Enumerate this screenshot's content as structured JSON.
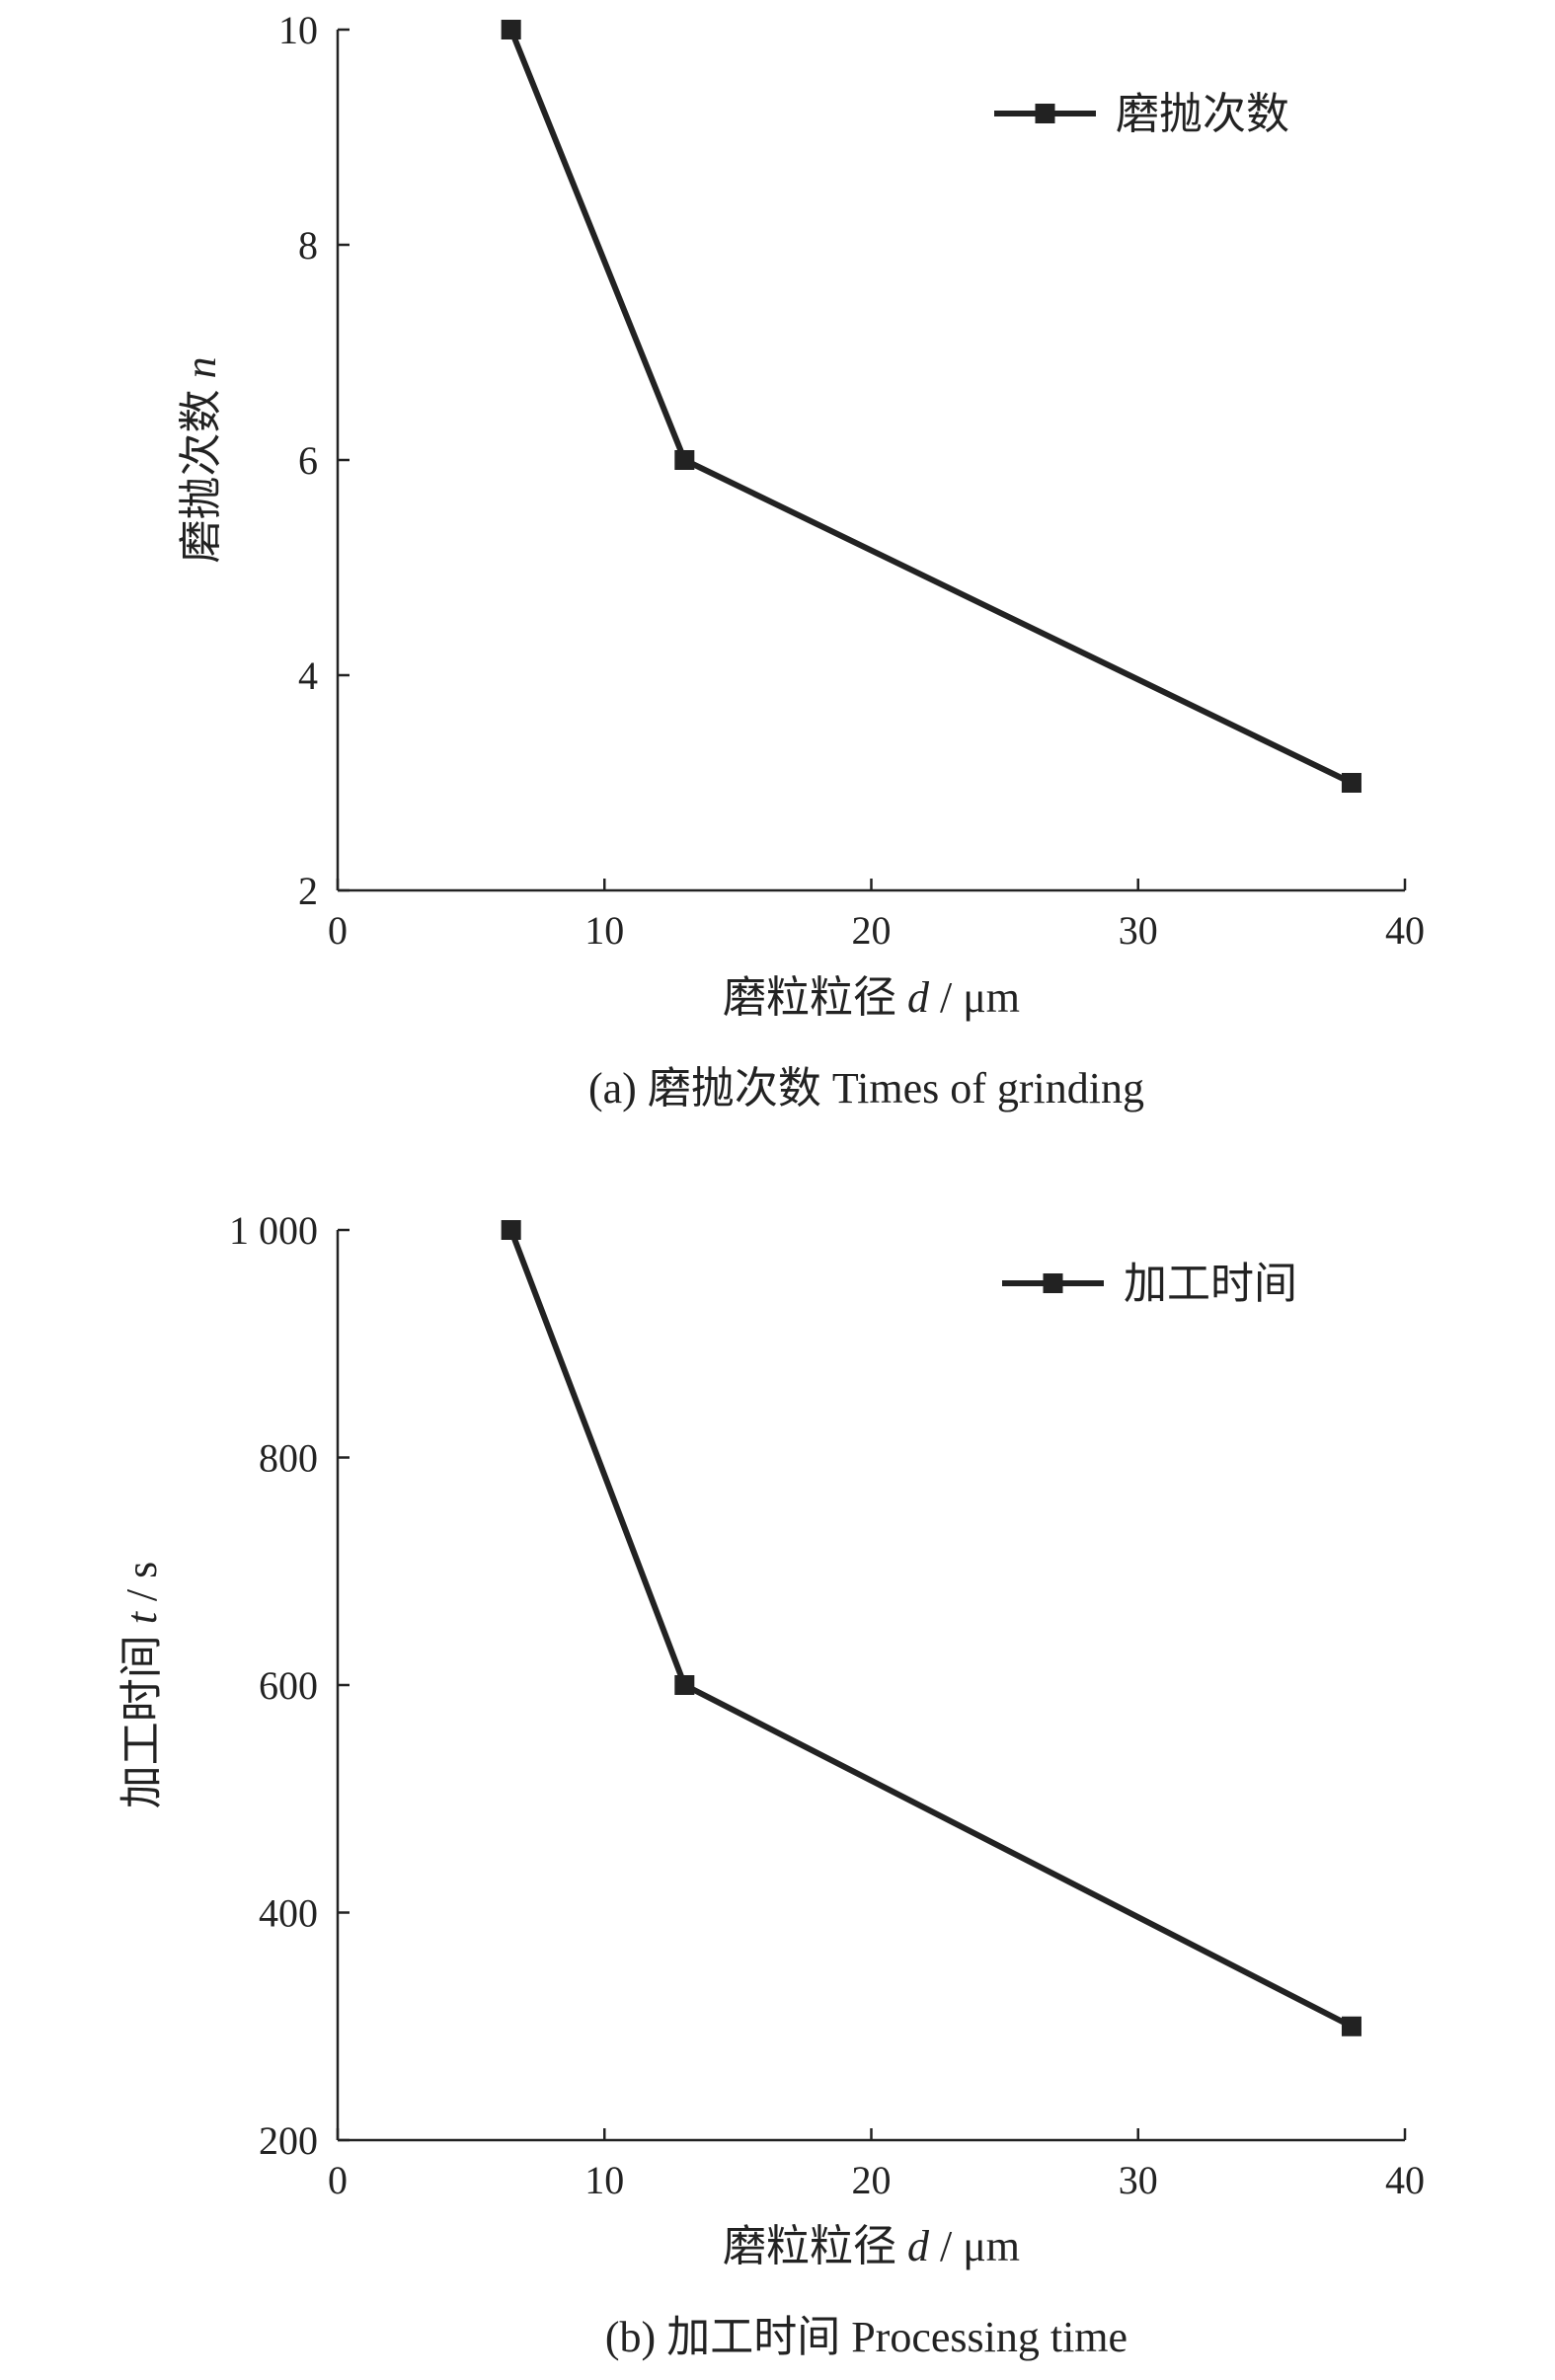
{
  "chart_data": [
    {
      "type": "line",
      "caption": "(a) 磨抛次数 Times of grinding",
      "xlabel_main": "磨粒粒径 ",
      "xlabel_var": "d",
      "xlabel_unit": " / μm",
      "ylabel_main": "磨抛次数 ",
      "ylabel_var": "n",
      "ylabel_unit": "",
      "xlim": [
        0,
        40
      ],
      "ylim": [
        2,
        10
      ],
      "xticks": [
        0,
        10,
        20,
        30,
        40
      ],
      "yticks": [
        2,
        4,
        6,
        8,
        10
      ],
      "xtick_labels": [
        "0",
        "10",
        "20",
        "30",
        "40"
      ],
      "ytick_labels": [
        "2",
        "4",
        "6",
        "8",
        "10"
      ],
      "grid": false,
      "legend_position": "top-right",
      "series": [
        {
          "name": "磨抛次数",
          "x": [
            6.5,
            13,
            38
          ],
          "y": [
            10,
            6,
            3
          ]
        }
      ]
    },
    {
      "type": "line",
      "caption": "(b) 加工时间 Processing time",
      "xlabel_main": "磨粒粒径 ",
      "xlabel_var": "d",
      "xlabel_unit": " / μm",
      "ylabel_main": "加工时间 ",
      "ylabel_var": "t",
      "ylabel_unit": " / s",
      "xlim": [
        0,
        40
      ],
      "ylim": [
        200,
        1000
      ],
      "xticks": [
        0,
        10,
        20,
        30,
        40
      ],
      "yticks": [
        200,
        400,
        600,
        800,
        1000
      ],
      "xtick_labels": [
        "0",
        "10",
        "20",
        "30",
        "40"
      ],
      "ytick_labels": [
        "200",
        "400",
        "600",
        "800",
        "1 000"
      ],
      "grid": false,
      "legend_position": "top-right",
      "series": [
        {
          "name": "加工时间",
          "x": [
            6.5,
            13,
            38
          ],
          "y": [
            1000,
            600,
            300
          ]
        }
      ]
    }
  ],
  "colors": {
    "line": "#222222",
    "axis": "#222222",
    "background": "#ffffff"
  }
}
